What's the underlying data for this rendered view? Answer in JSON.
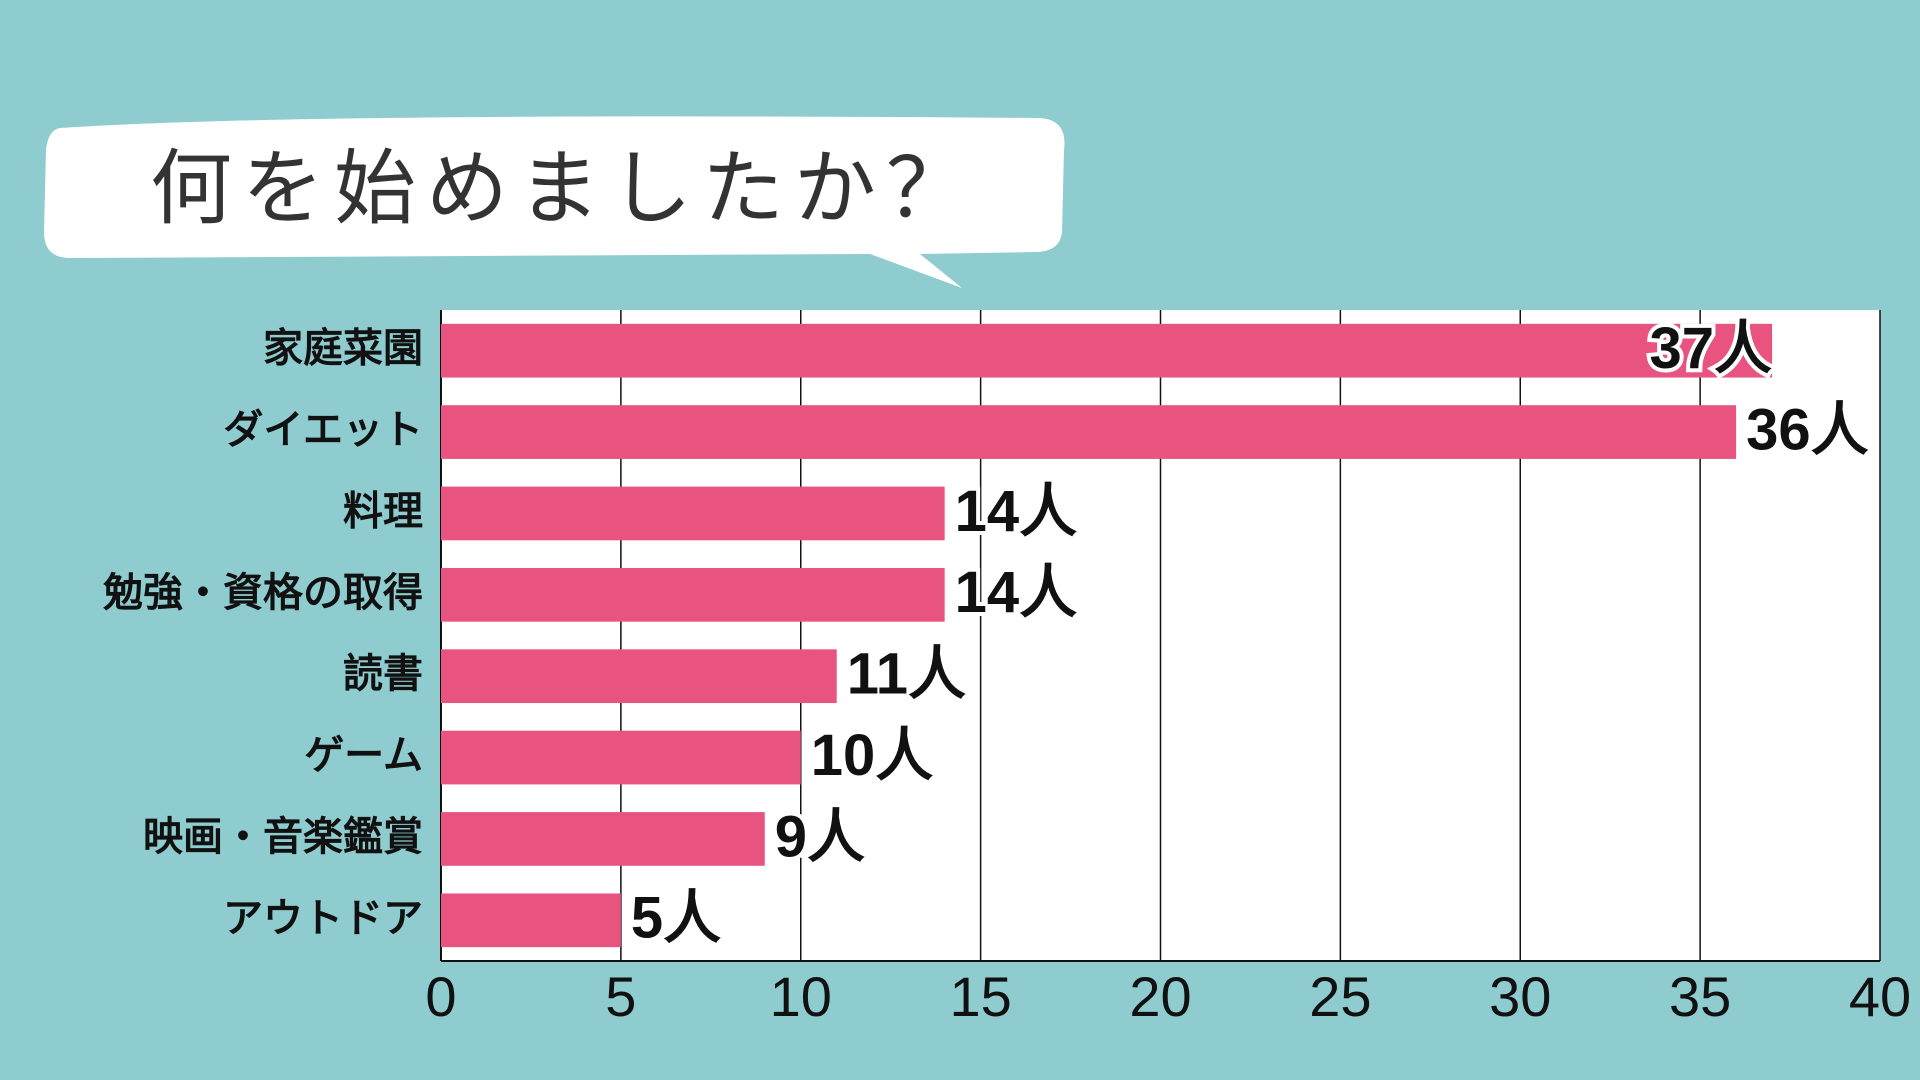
{
  "chart_data": {
    "type": "bar",
    "orientation": "horizontal",
    "title": "何を始めましたか？",
    "categories": [
      "家庭菜園",
      "ダイエット",
      "料理",
      "勉強・資格の取得",
      "読書",
      "ゲーム",
      "映画・音楽鑑賞",
      "アウトドア"
    ],
    "values": [
      37,
      36,
      14,
      14,
      11,
      10,
      9,
      5
    ],
    "value_labels": [
      "37人",
      "36人",
      "14人",
      "14人",
      "11人",
      "10人",
      "9人",
      "5人"
    ],
    "color": "#e8547f",
    "xlim": [
      0,
      40
    ],
    "xticks": [
      0,
      5,
      10,
      15,
      20,
      25,
      30,
      35,
      40
    ],
    "grid": true
  }
}
